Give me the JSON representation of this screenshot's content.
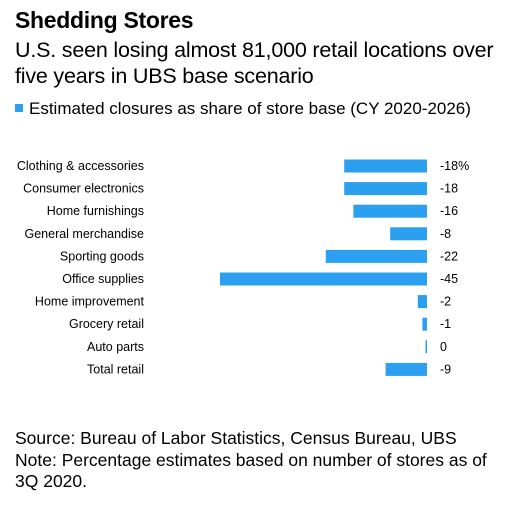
{
  "chart_data": {
    "type": "bar",
    "orientation": "horizontal",
    "title": "Shedding Stores",
    "subtitle": "U.S. seen losing almost 81,000 retail locations over five years in UBS base scenario",
    "legend": "Estimated closures as share of store base (CY 2020-2026)",
    "categories": [
      "Clothing & accessories",
      "Consumer electronics",
      "Home furnishings",
      "General merchandise",
      "Sporting goods",
      "Office supplies",
      "Home improvement",
      "Grocery retail",
      "Auto parts",
      "Total retail"
    ],
    "values": [
      -18,
      -18,
      -16,
      -8,
      -22,
      -45,
      -2,
      -1,
      -0.3,
      -9
    ],
    "value_labels": [
      "-18%",
      "-18",
      "-16",
      "-8",
      "-22",
      "-45",
      "-2",
      "-1",
      "0",
      "-9"
    ],
    "xlim": [
      -45,
      0
    ],
    "bar_color": "#2b9ff0",
    "grid": false
  },
  "footer": {
    "source": "Source: Bureau of Labor Statistics, Census Bureau, UBS",
    "note": "Note: Percentage estimates based on number of stores as of 3Q 2020."
  }
}
